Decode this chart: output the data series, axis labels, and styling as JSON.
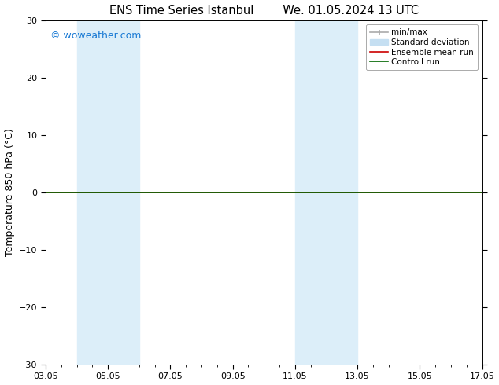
{
  "title_left": "ENS Time Series Istanbul",
  "title_right": "We. 01.05.2024 13 UTC",
  "ylabel": "Temperature 850 hPa (°C)",
  "xtick_labels": [
    "03.05",
    "05.05",
    "07.05",
    "09.05",
    "11.05",
    "13.05",
    "15.05",
    "17.05"
  ],
  "xtick_positions": [
    0,
    2,
    4,
    6,
    8,
    10,
    12,
    14
  ],
  "xlim": [
    0,
    14
  ],
  "ylim": [
    -30,
    30
  ],
  "yticks": [
    -30,
    -20,
    -10,
    0,
    10,
    20,
    30
  ],
  "shaded_regions": [
    {
      "x_start": 1,
      "x_end": 3,
      "color": "#dceef9"
    },
    {
      "x_start": 8,
      "x_end": 10,
      "color": "#dceef9"
    }
  ],
  "control_run_y": 0,
  "ensemble_mean_y": 0,
  "background_color": "#ffffff",
  "plot_bg_color": "#ffffff",
  "watermark_text": "© woweather.com",
  "watermark_color": "#1a7ad4",
  "legend_items": [
    {
      "label": "min/max",
      "color": "#aaaaaa",
      "lw": 1.2
    },
    {
      "label": "Standard deviation",
      "color": "#c5dff2",
      "lw": 7
    },
    {
      "label": "Ensemble mean run",
      "color": "#cc0000",
      "lw": 1.2
    },
    {
      "label": "Controll run",
      "color": "#006600",
      "lw": 1.2
    }
  ],
  "title_fontsize": 10.5,
  "axis_label_fontsize": 9,
  "tick_fontsize": 8,
  "watermark_fontsize": 9,
  "legend_fontsize": 7.5
}
